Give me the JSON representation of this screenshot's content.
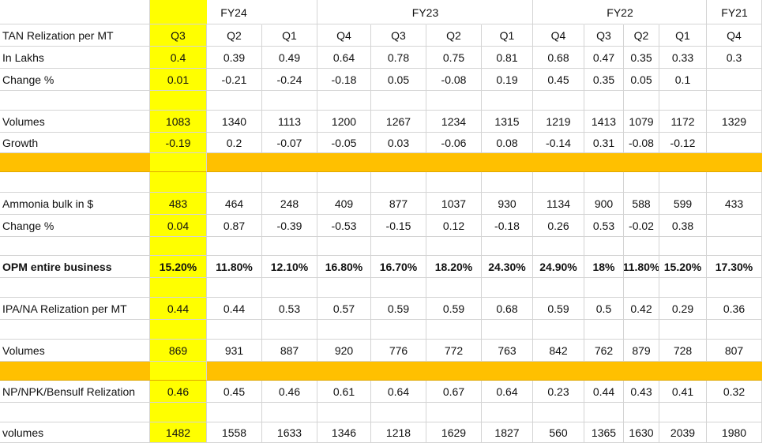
{
  "fiscal_years": [
    "FY24",
    "FY23",
    "FY22",
    "FY21"
  ],
  "quarters": [
    "Q3",
    "Q2",
    "Q1",
    "Q4",
    "Q3",
    "Q2",
    "Q1",
    "Q4",
    "Q3",
    "Q2",
    "Q1",
    "Q4"
  ],
  "rows": {
    "tan_header": "TAN Relization per MT",
    "in_lakhs": {
      "label": "In Lakhs",
      "values": [
        "0.4",
        "0.39",
        "0.49",
        "0.64",
        "0.78",
        "0.75",
        "0.81",
        "0.68",
        "0.47",
        "0.35",
        "0.33",
        "0.3"
      ]
    },
    "tan_change": {
      "label": "Change %",
      "values": [
        "0.01",
        "-0.21",
        "-0.24",
        "-0.18",
        "0.05",
        "-0.08",
        "0.19",
        "0.45",
        "0.35",
        "0.05",
        "0.1",
        ""
      ]
    },
    "volumes_1": {
      "label": "Volumes",
      "values": [
        "1083",
        "1340",
        "1113",
        "1200",
        "1267",
        "1234",
        "1315",
        "1219",
        "1413",
        "1079",
        "1172",
        "1329"
      ]
    },
    "growth": {
      "label": "Growth",
      "values": [
        "-0.19",
        "0.2",
        "-0.07",
        "-0.05",
        "0.03",
        "-0.06",
        "0.08",
        "-0.14",
        "0.31",
        "-0.08",
        "-0.12",
        ""
      ]
    },
    "ammonia": {
      "label": "Ammonia bulk in $",
      "values": [
        "483",
        "464",
        "248",
        "409",
        "877",
        "1037",
        "930",
        "1134",
        "900",
        "588",
        "599",
        "433"
      ]
    },
    "ammonia_change": {
      "label": "Change %",
      "values": [
        "0.04",
        "0.87",
        "-0.39",
        "-0.53",
        "-0.15",
        "0.12",
        "-0.18",
        "0.26",
        "0.53",
        "-0.02",
        "0.38",
        ""
      ]
    },
    "opm": {
      "label": "OPM entire business",
      "values": [
        "15.20%",
        "11.80%",
        "12.10%",
        "16.80%",
        "16.70%",
        "18.20%",
        "24.30%",
        "24.90%",
        "18%",
        "11.80%",
        "15.20%",
        "17.30%"
      ]
    },
    "ipa": {
      "label": "IPA/NA Relization per MT",
      "values": [
        "0.44",
        "0.44",
        "0.53",
        "0.57",
        "0.59",
        "0.59",
        "0.68",
        "0.59",
        "0.5",
        "0.42",
        "0.29",
        "0.36"
      ]
    },
    "volumes_2": {
      "label": "Volumes",
      "values": [
        "869",
        "931",
        "887",
        "920",
        "776",
        "772",
        "763",
        "842",
        "762",
        "879",
        "728",
        "807"
      ]
    },
    "np": {
      "label": "NP/NPK/Bensulf Relization",
      "values": [
        "0.46",
        "0.45",
        "0.46",
        "0.61",
        "0.64",
        "0.67",
        "0.64",
        "0.23",
        "0.44",
        "0.43",
        "0.41",
        "0.32"
      ]
    },
    "volumes_3": {
      "label": "volumes",
      "values": [
        "1482",
        "1558",
        "1633",
        "1346",
        "1218",
        "1629",
        "1827",
        "560",
        "1365",
        "1630",
        "2039",
        "1980"
      ]
    }
  },
  "colors": {
    "highlight_column": "#ffff00",
    "separator_band": "#ffc000",
    "gridline": "#d4d4d4"
  }
}
